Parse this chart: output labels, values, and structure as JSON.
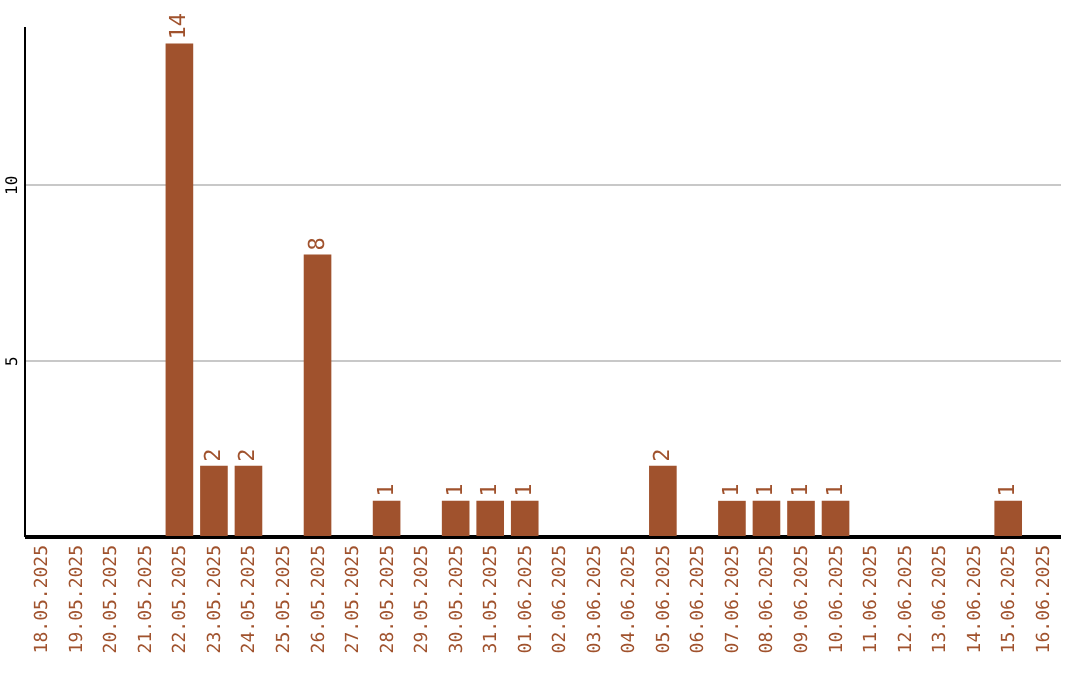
{
  "chart_data": {
    "type": "bar",
    "categories": [
      "18.05.2025",
      "19.05.2025",
      "20.05.2025",
      "21.05.2025",
      "22.05.2025",
      "23.05.2025",
      "24.05.2025",
      "25.05.2025",
      "26.05.2025",
      "27.05.2025",
      "28.05.2025",
      "29.05.2025",
      "30.05.2025",
      "31.05.2025",
      "01.06.2025",
      "02.06.2025",
      "03.06.2025",
      "04.06.2025",
      "05.06.2025",
      "06.06.2025",
      "07.06.2025",
      "08.06.2025",
      "09.06.2025",
      "10.06.2025",
      "11.06.2025",
      "12.06.2025",
      "13.06.2025",
      "14.06.2025",
      "15.06.2025",
      "16.06.2025"
    ],
    "values": [
      0,
      0,
      0,
      0,
      14,
      2,
      2,
      0,
      8,
      0,
      1,
      0,
      1,
      1,
      1,
      0,
      0,
      0,
      2,
      0,
      1,
      1,
      1,
      1,
      0,
      0,
      0,
      0,
      1,
      0
    ],
    "value_labels": [
      null,
      null,
      null,
      null,
      "14",
      "2",
      "2",
      null,
      "8",
      null,
      "1",
      null,
      "1",
      "1",
      "1",
      null,
      null,
      null,
      "2",
      null,
      "1",
      "1",
      "1",
      "1",
      null,
      null,
      null,
      null,
      "1",
      null
    ],
    "color": "#a0522d",
    "ylim": [
      0,
      14.5
    ],
    "yticks": [
      5,
      10
    ],
    "grid": "y"
  }
}
